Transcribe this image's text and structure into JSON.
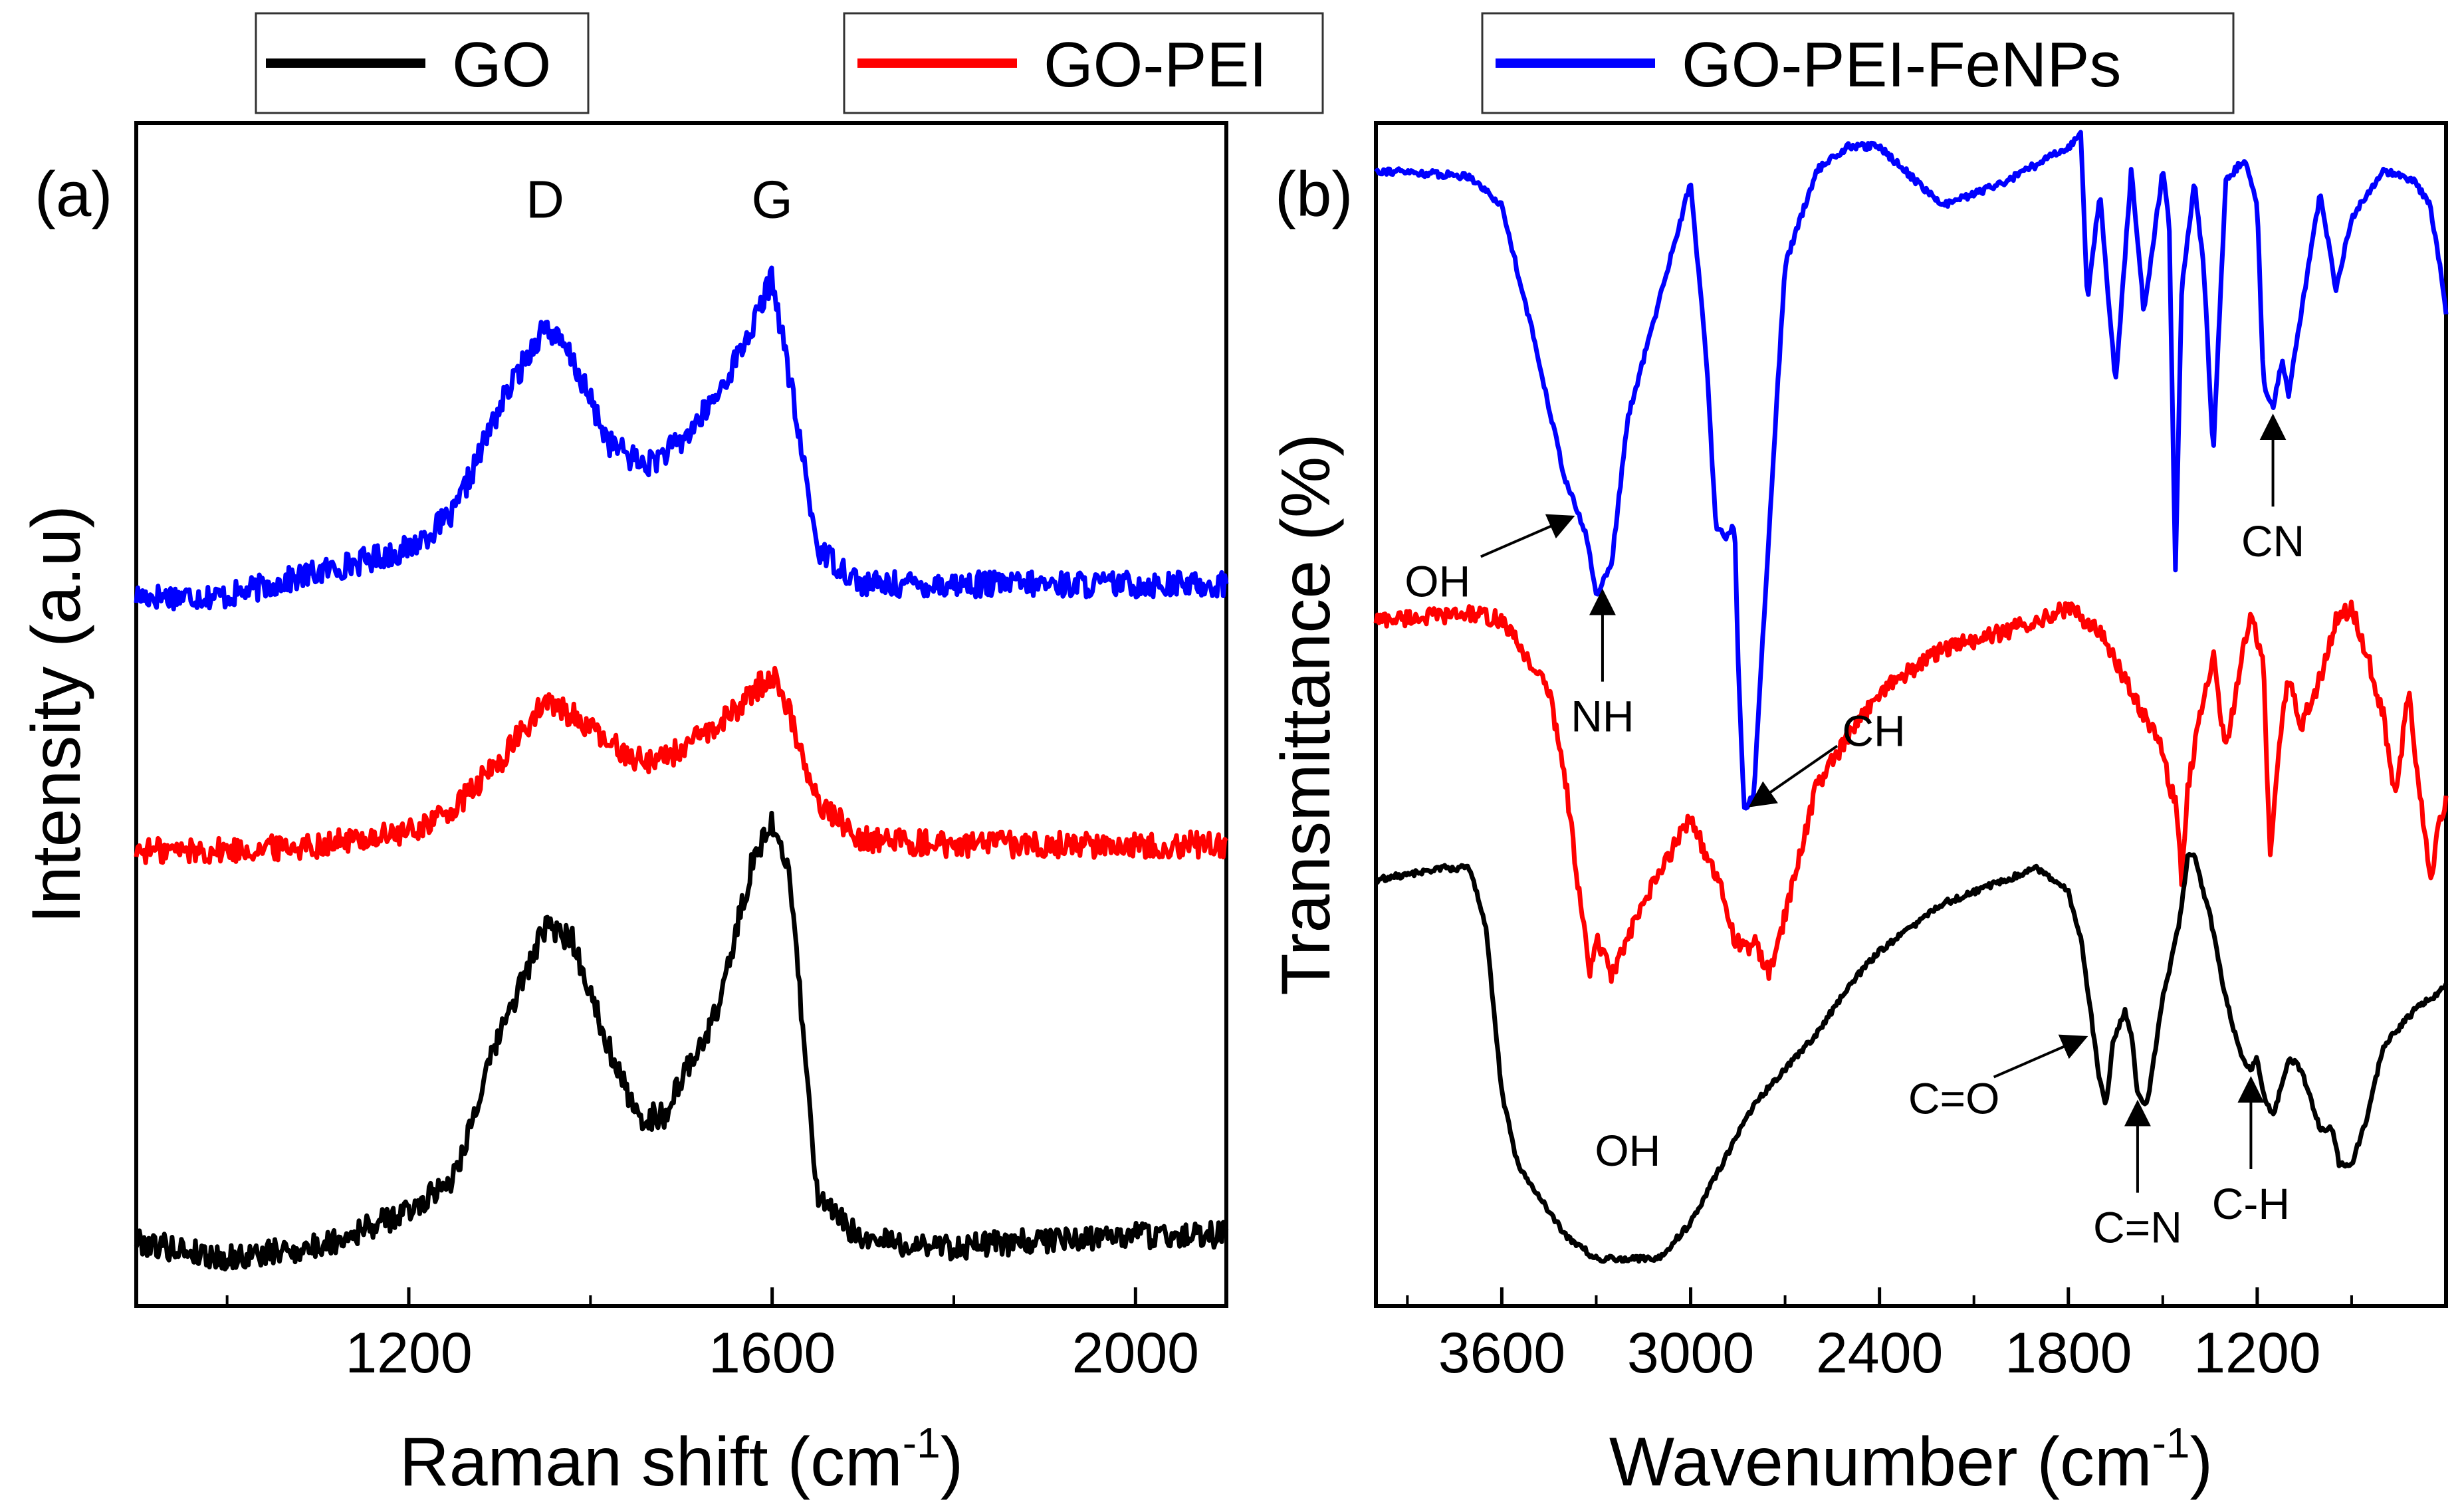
{
  "legend": [
    {
      "name": "GO",
      "color": "#000000"
    },
    {
      "name": "GO-PEI",
      "color": "#ff0000"
    },
    {
      "name": "GO-PEI-FeNPs",
      "color": "#0000ff"
    }
  ],
  "chart_data": [
    {
      "type": "line",
      "panel_label": "(a)",
      "xlabel": "Raman shift (cm",
      "xlabel_sup": "-1",
      "xlabel_close": ")",
      "ylabel": "Intensity (a.u)",
      "xlim": [
        900,
        2100
      ],
      "xticks": [
        1200,
        1600,
        2000
      ],
      "xtick_labels": [
        "1200",
        "1600",
        "2000"
      ],
      "ylim": [
        0,
        1
      ],
      "y_ticks_shown": false,
      "peak_labels": [
        {
          "text": "D",
          "x": 1350,
          "y": 0.92
        },
        {
          "text": "G",
          "x": 1600,
          "y": 0.92
        }
      ],
      "series": [
        {
          "name": "GO-PEI-FeNPs",
          "color": "#0000ff",
          "x": [
            900,
            1000,
            1100,
            1200,
            1250,
            1300,
            1350,
            1380,
            1420,
            1460,
            1500,
            1540,
            1580,
            1600,
            1620,
            1650,
            1700,
            1800,
            1900,
            2000,
            2100
          ],
          "y": [
            0.6,
            0.6,
            0.62,
            0.64,
            0.67,
            0.76,
            0.83,
            0.8,
            0.73,
            0.71,
            0.73,
            0.77,
            0.83,
            0.87,
            0.78,
            0.64,
            0.61,
            0.61,
            0.61,
            0.61,
            0.61
          ]
        },
        {
          "name": "GO-PEI",
          "color": "#ff0000",
          "x": [
            900,
            1000,
            1100,
            1200,
            1250,
            1300,
            1350,
            1380,
            1420,
            1460,
            1500,
            1540,
            1580,
            1600,
            1620,
            1650,
            1700,
            1800,
            1900,
            2000,
            2100
          ],
          "y": [
            0.385,
            0.385,
            0.39,
            0.4,
            0.42,
            0.46,
            0.51,
            0.5,
            0.475,
            0.46,
            0.47,
            0.49,
            0.52,
            0.535,
            0.5,
            0.425,
            0.395,
            0.39,
            0.39,
            0.39,
            0.39
          ]
        },
        {
          "name": "GO",
          "color": "#000000",
          "x": [
            900,
            1000,
            1100,
            1200,
            1250,
            1300,
            1350,
            1380,
            1420,
            1450,
            1480,
            1500,
            1540,
            1580,
            1600,
            1620,
            1650,
            1700,
            1800,
            1900,
            2000,
            2100
          ],
          "y": [
            0.055,
            0.04,
            0.05,
            0.08,
            0.11,
            0.23,
            0.32,
            0.31,
            0.22,
            0.16,
            0.16,
            0.19,
            0.25,
            0.38,
            0.41,
            0.36,
            0.09,
            0.055,
            0.05,
            0.055,
            0.06,
            0.06
          ]
        }
      ]
    },
    {
      "type": "line",
      "panel_label": "(b)",
      "xlabel": "Wavenumber (cm",
      "xlabel_sup": "-1",
      "xlabel_close": ")",
      "ylabel": "Transmittance (%)",
      "xlim": [
        4000,
        600
      ],
      "xticks": [
        3600,
        3000,
        2400,
        1800,
        1200
      ],
      "xtick_labels": [
        "3600",
        "3000",
        "2400",
        "1800",
        "1200"
      ],
      "ylim": [
        0,
        1
      ],
      "y_ticks_shown": false,
      "series": [
        {
          "name": "GO-PEI-FeNPs",
          "color": "#0000ff",
          "x": [
            4000,
            3700,
            3600,
            3500,
            3400,
            3330,
            3300,
            3250,
            3200,
            3100,
            3000,
            2950,
            2920,
            2890,
            2860,
            2850,
            2830,
            2800,
            2750,
            2700,
            2600,
            2500,
            2400,
            2200,
            2100,
            2000,
            1800,
            1760,
            1740,
            1700,
            1650,
            1600,
            1560,
            1500,
            1480,
            1460,
            1440,
            1400,
            1370,
            1340,
            1300,
            1240,
            1200,
            1180,
            1150,
            1120,
            1100,
            1060,
            1000,
            950,
            900,
            850,
            800,
            700,
            650,
            620,
            600
          ],
          "y": [
            0.96,
            0.955,
            0.93,
            0.82,
            0.7,
            0.65,
            0.6,
            0.63,
            0.75,
            0.85,
            0.95,
            0.8,
            0.66,
            0.65,
            0.66,
            0.55,
            0.42,
            0.43,
            0.66,
            0.88,
            0.96,
            0.98,
            0.98,
            0.93,
            0.94,
            0.95,
            0.98,
            0.99,
            0.85,
            0.94,
            0.78,
            0.96,
            0.84,
            0.96,
            0.92,
            0.62,
            0.86,
            0.95,
            0.88,
            0.72,
            0.95,
            0.97,
            0.93,
            0.78,
            0.76,
            0.8,
            0.77,
            0.84,
            0.94,
            0.86,
            0.92,
            0.94,
            0.96,
            0.95,
            0.93,
            0.88,
            0.84
          ]
        },
        {
          "name": "GO-PEI",
          "color": "#ff0000",
          "x": [
            4000,
            3700,
            3600,
            3450,
            3400,
            3350,
            3320,
            3300,
            3250,
            3150,
            3050,
            3000,
            2950,
            2900,
            2860,
            2820,
            2800,
            2750,
            2700,
            2600,
            2400,
            2200,
            2000,
            1800,
            1700,
            1600,
            1500,
            1480,
            1460,
            1440,
            1420,
            1380,
            1340,
            1300,
            1260,
            1240,
            1220,
            1180,
            1160,
            1140,
            1120,
            1100,
            1060,
            1000,
            950,
            900,
            850,
            800,
            760,
            720,
            700,
            650,
            620,
            600
          ],
          "y": [
            0.58,
            0.585,
            0.58,
            0.52,
            0.45,
            0.34,
            0.28,
            0.31,
            0.28,
            0.34,
            0.39,
            0.415,
            0.38,
            0.35,
            0.31,
            0.3,
            0.31,
            0.28,
            0.33,
            0.44,
            0.52,
            0.555,
            0.57,
            0.59,
            0.57,
            0.52,
            0.47,
            0.44,
            0.43,
            0.36,
            0.44,
            0.5,
            0.55,
            0.47,
            0.53,
            0.56,
            0.58,
            0.55,
            0.38,
            0.44,
            0.5,
            0.53,
            0.49,
            0.53,
            0.58,
            0.59,
            0.55,
            0.5,
            0.43,
            0.52,
            0.47,
            0.36,
            0.41,
            0.43
          ]
        },
        {
          "name": "GO",
          "color": "#000000",
          "x": [
            4000,
            3800,
            3700,
            3650,
            3600,
            3550,
            3500,
            3400,
            3300,
            3200,
            3100,
            3000,
            2900,
            2800,
            2700,
            2600,
            2500,
            2400,
            2300,
            2200,
            2100,
            2000,
            1900,
            1850,
            1800,
            1760,
            1730,
            1700,
            1680,
            1660,
            1620,
            1600,
            1580,
            1550,
            1500,
            1450,
            1420,
            1400,
            1350,
            1300,
            1250,
            1220,
            1200,
            1180,
            1150,
            1100,
            1060,
            1000,
            960,
            940,
            900,
            850,
            800,
            700,
            650,
            600
          ],
          "y": [
            0.36,
            0.37,
            0.37,
            0.32,
            0.18,
            0.12,
            0.1,
            0.06,
            0.04,
            0.04,
            0.04,
            0.07,
            0.12,
            0.17,
            0.2,
            0.23,
            0.27,
            0.3,
            0.32,
            0.34,
            0.35,
            0.36,
            0.37,
            0.36,
            0.35,
            0.31,
            0.25,
            0.19,
            0.17,
            0.22,
            0.25,
            0.23,
            0.18,
            0.17,
            0.26,
            0.32,
            0.38,
            0.38,
            0.33,
            0.26,
            0.21,
            0.2,
            0.21,
            0.18,
            0.16,
            0.21,
            0.2,
            0.15,
            0.15,
            0.12,
            0.12,
            0.16,
            0.22,
            0.25,
            0.26,
            0.27
          ]
        }
      ],
      "annotations": [
        {
          "text": "OH",
          "target": "GO-PEI-FeNPs",
          "x": 3350,
          "arrow": "left"
        },
        {
          "text": "NH",
          "target": "GO-PEI-FeNPs",
          "x": 3280,
          "arrow": "up"
        },
        {
          "text": "CH",
          "target": "GO-PEI-FeNPs",
          "x": 2830,
          "arrow": "right"
        },
        {
          "text": "CN",
          "target": "GO-PEI-FeNPs",
          "x": 1150,
          "arrow": "up"
        },
        {
          "text": "OH",
          "target": "GO",
          "x": 3200,
          "arrow": "none"
        },
        {
          "text": "C=O",
          "target": "GO",
          "x": 1720,
          "arrow": "right"
        },
        {
          "text": "C=N",
          "target": "GO",
          "x": 1580,
          "arrow": "up"
        },
        {
          "text": "C-H",
          "target": "GO",
          "x": 1220,
          "arrow": "up"
        }
      ]
    }
  ]
}
